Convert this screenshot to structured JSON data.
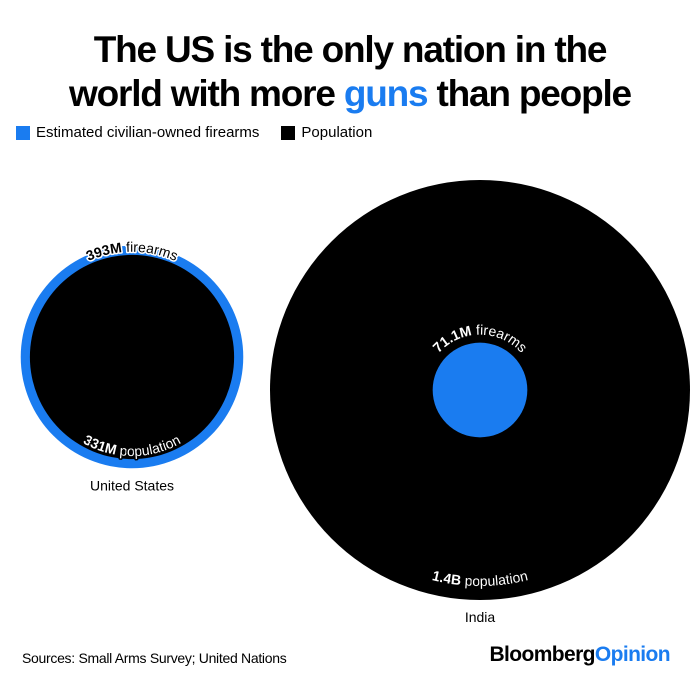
{
  "chart_data": {
    "type": "proportional_circle",
    "title": [
      "The US is the only nation in the",
      "world with more",
      "guns",
      "than people"
    ],
    "categories": [
      "United States",
      "India"
    ],
    "series": [
      {
        "name": "Estimated civilian-owned firearms",
        "unit": "firearms",
        "color": "#1a7cf0",
        "values": [
          393000000,
          71100000
        ],
        "value_labels": [
          "393M",
          "71.1M"
        ]
      },
      {
        "name": "Population",
        "unit": "population",
        "color": "#000000",
        "values": [
          331000000,
          1400000000
        ],
        "value_labels": [
          "331M",
          "1.4B"
        ]
      }
    ],
    "source": "Sources: Small Arms Survey; United Nations",
    "branding": [
      "Bloomberg",
      "Opinion"
    ]
  }
}
